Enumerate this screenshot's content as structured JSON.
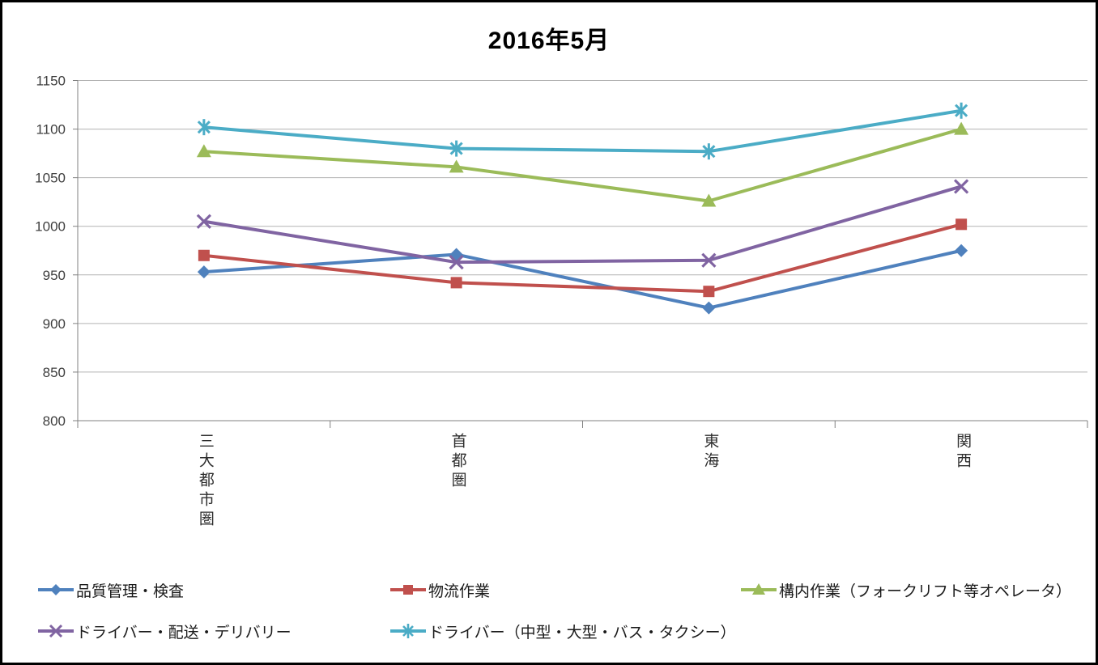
{
  "chart_title": "2016年5月",
  "chart_data": {
    "type": "line",
    "title": "2016年5月",
    "categories": [
      "三大都市圏",
      "首都圏",
      "東海",
      "関西"
    ],
    "series": [
      {
        "name": "品質管理・検査",
        "color": "#4F81BD",
        "marker": "diamond",
        "values": [
          953,
          971,
          916,
          975
        ]
      },
      {
        "name": "物流作業",
        "color": "#C0504D",
        "marker": "square",
        "values": [
          970,
          942,
          933,
          1002
        ]
      },
      {
        "name": "構内作業（フォークリフト等オペレータ）",
        "color": "#9BBB59",
        "marker": "triangle",
        "values": [
          1077,
          1061,
          1026,
          1100
        ]
      },
      {
        "name": "ドライバー・配送・デリバリー",
        "color": "#8064A2",
        "marker": "x",
        "values": [
          1005,
          963,
          965,
          1041
        ]
      },
      {
        "name": "ドライバー（中型・大型・バス・タクシー）",
        "color": "#4BACC6",
        "marker": "asterisk",
        "values": [
          1102,
          1080,
          1077,
          1119
        ]
      }
    ],
    "ylim": [
      800,
      1150
    ],
    "y_ticks": [
      800,
      850,
      900,
      950,
      1000,
      1050,
      1100,
      1150
    ],
    "grid": true,
    "legend_position": "bottom",
    "colors": {
      "axis_line": "#808080",
      "grid_line": "#B3B3B3",
      "tick_label": "#3F3F3F"
    }
  }
}
